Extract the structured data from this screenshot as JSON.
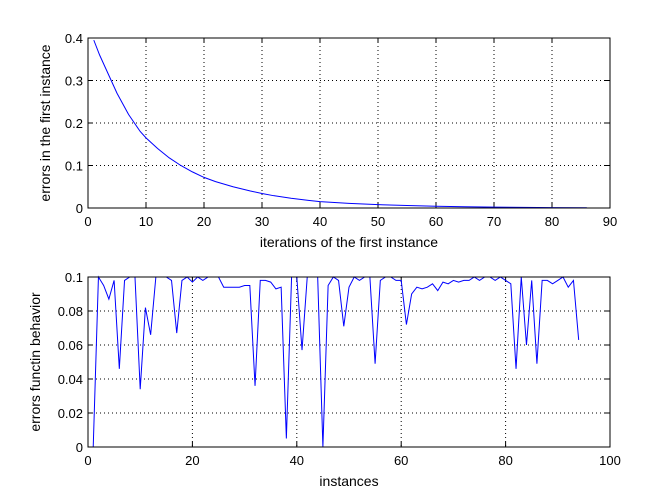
{
  "chart_data": [
    {
      "type": "line",
      "xlabel": "iterations of the first instance",
      "ylabel": "errors in the first instance",
      "xlim": [
        0,
        90
      ],
      "ylim": [
        0,
        0.4
      ],
      "xticks": [
        0,
        10,
        20,
        30,
        40,
        50,
        60,
        70,
        80,
        90
      ],
      "yticks": [
        0,
        0.1,
        0.2,
        0.3,
        0.4
      ],
      "xtick_labels": [
        "0",
        "10",
        "20",
        "30",
        "40",
        "50",
        "60",
        "70",
        "80",
        "90"
      ],
      "ytick_labels": [
        "0",
        "0.1",
        "0.2",
        "0.3",
        "0.4"
      ],
      "grid": true,
      "color": "#0000ff",
      "x": [
        1,
        2,
        3,
        4,
        5,
        6,
        7,
        8,
        9,
        10,
        12,
        14,
        16,
        18,
        20,
        22,
        25,
        28,
        30,
        32,
        35,
        38,
        40,
        45,
        50,
        55,
        60,
        65,
        70,
        75,
        80,
        86
      ],
      "y": [
        0.395,
        0.36,
        0.33,
        0.3,
        0.27,
        0.245,
        0.22,
        0.2,
        0.18,
        0.165,
        0.14,
        0.118,
        0.1,
        0.085,
        0.072,
        0.062,
        0.05,
        0.04,
        0.034,
        0.029,
        0.023,
        0.018,
        0.015,
        0.011,
        0.008,
        0.006,
        0.004,
        0.003,
        0.002,
        0.0015,
        0.001,
        0.0005
      ]
    },
    {
      "type": "line",
      "xlabel": "instances",
      "ylabel": "errors functin behavior",
      "xlim": [
        0,
        100
      ],
      "ylim": [
        0,
        0.1
      ],
      "xticks": [
        0,
        20,
        40,
        60,
        80,
        100
      ],
      "yticks": [
        0,
        0.02,
        0.04,
        0.06,
        0.08,
        0.1
      ],
      "xtick_labels": [
        "0",
        "20",
        "40",
        "60",
        "80",
        "100"
      ],
      "ytick_labels": [
        "0",
        "0.02",
        "0.04",
        "0.06",
        "0.08",
        "0.1"
      ],
      "grid": true,
      "color": "#0000ff",
      "x": [
        1,
        2,
        3,
        4,
        5,
        6,
        7,
        8,
        9,
        10,
        11,
        12,
        13,
        14,
        15,
        16,
        17,
        18,
        19,
        20,
        21,
        22,
        23,
        24,
        25,
        26,
        27,
        28,
        29,
        30,
        31,
        32,
        33,
        34,
        35,
        36,
        37,
        38,
        39,
        40,
        41,
        42,
        43,
        44,
        45,
        46,
        47,
        48,
        49,
        50,
        51,
        52,
        53,
        54,
        55,
        56,
        57,
        58,
        59,
        60,
        61,
        62,
        63,
        64,
        65,
        66,
        67,
        68,
        69,
        70,
        71,
        72,
        73,
        74,
        75,
        76,
        77,
        78,
        79,
        80,
        81,
        82,
        83,
        84,
        85,
        86,
        87,
        88,
        89,
        90,
        91,
        92,
        93,
        94
      ],
      "y": [
        0.0,
        0.1,
        0.095,
        0.087,
        0.098,
        0.046,
        0.098,
        0.1,
        0.1,
        0.034,
        0.082,
        0.066,
        0.1,
        0.1,
        0.1,
        0.098,
        0.067,
        0.098,
        0.1,
        0.097,
        0.1,
        0.098,
        0.1,
        0.1,
        0.1,
        0.094,
        0.094,
        0.094,
        0.094,
        0.095,
        0.095,
        0.036,
        0.098,
        0.098,
        0.097,
        0.093,
        0.094,
        0.005,
        0.1,
        0.1,
        0.057,
        0.1,
        0.1,
        0.1,
        0.0,
        0.095,
        0.1,
        0.098,
        0.071,
        0.094,
        0.1,
        0.098,
        0.1,
        0.1,
        0.049,
        0.098,
        0.1,
        0.1,
        0.098,
        0.098,
        0.072,
        0.09,
        0.094,
        0.093,
        0.094,
        0.096,
        0.092,
        0.097,
        0.096,
        0.098,
        0.097,
        0.098,
        0.098,
        0.1,
        0.098,
        0.1,
        0.1,
        0.098,
        0.1,
        0.098,
        0.096,
        0.046,
        0.1,
        0.06,
        0.098,
        0.049,
        0.098,
        0.098,
        0.096,
        0.098,
        0.1,
        0.094,
        0.098,
        0.063
      ]
    }
  ]
}
